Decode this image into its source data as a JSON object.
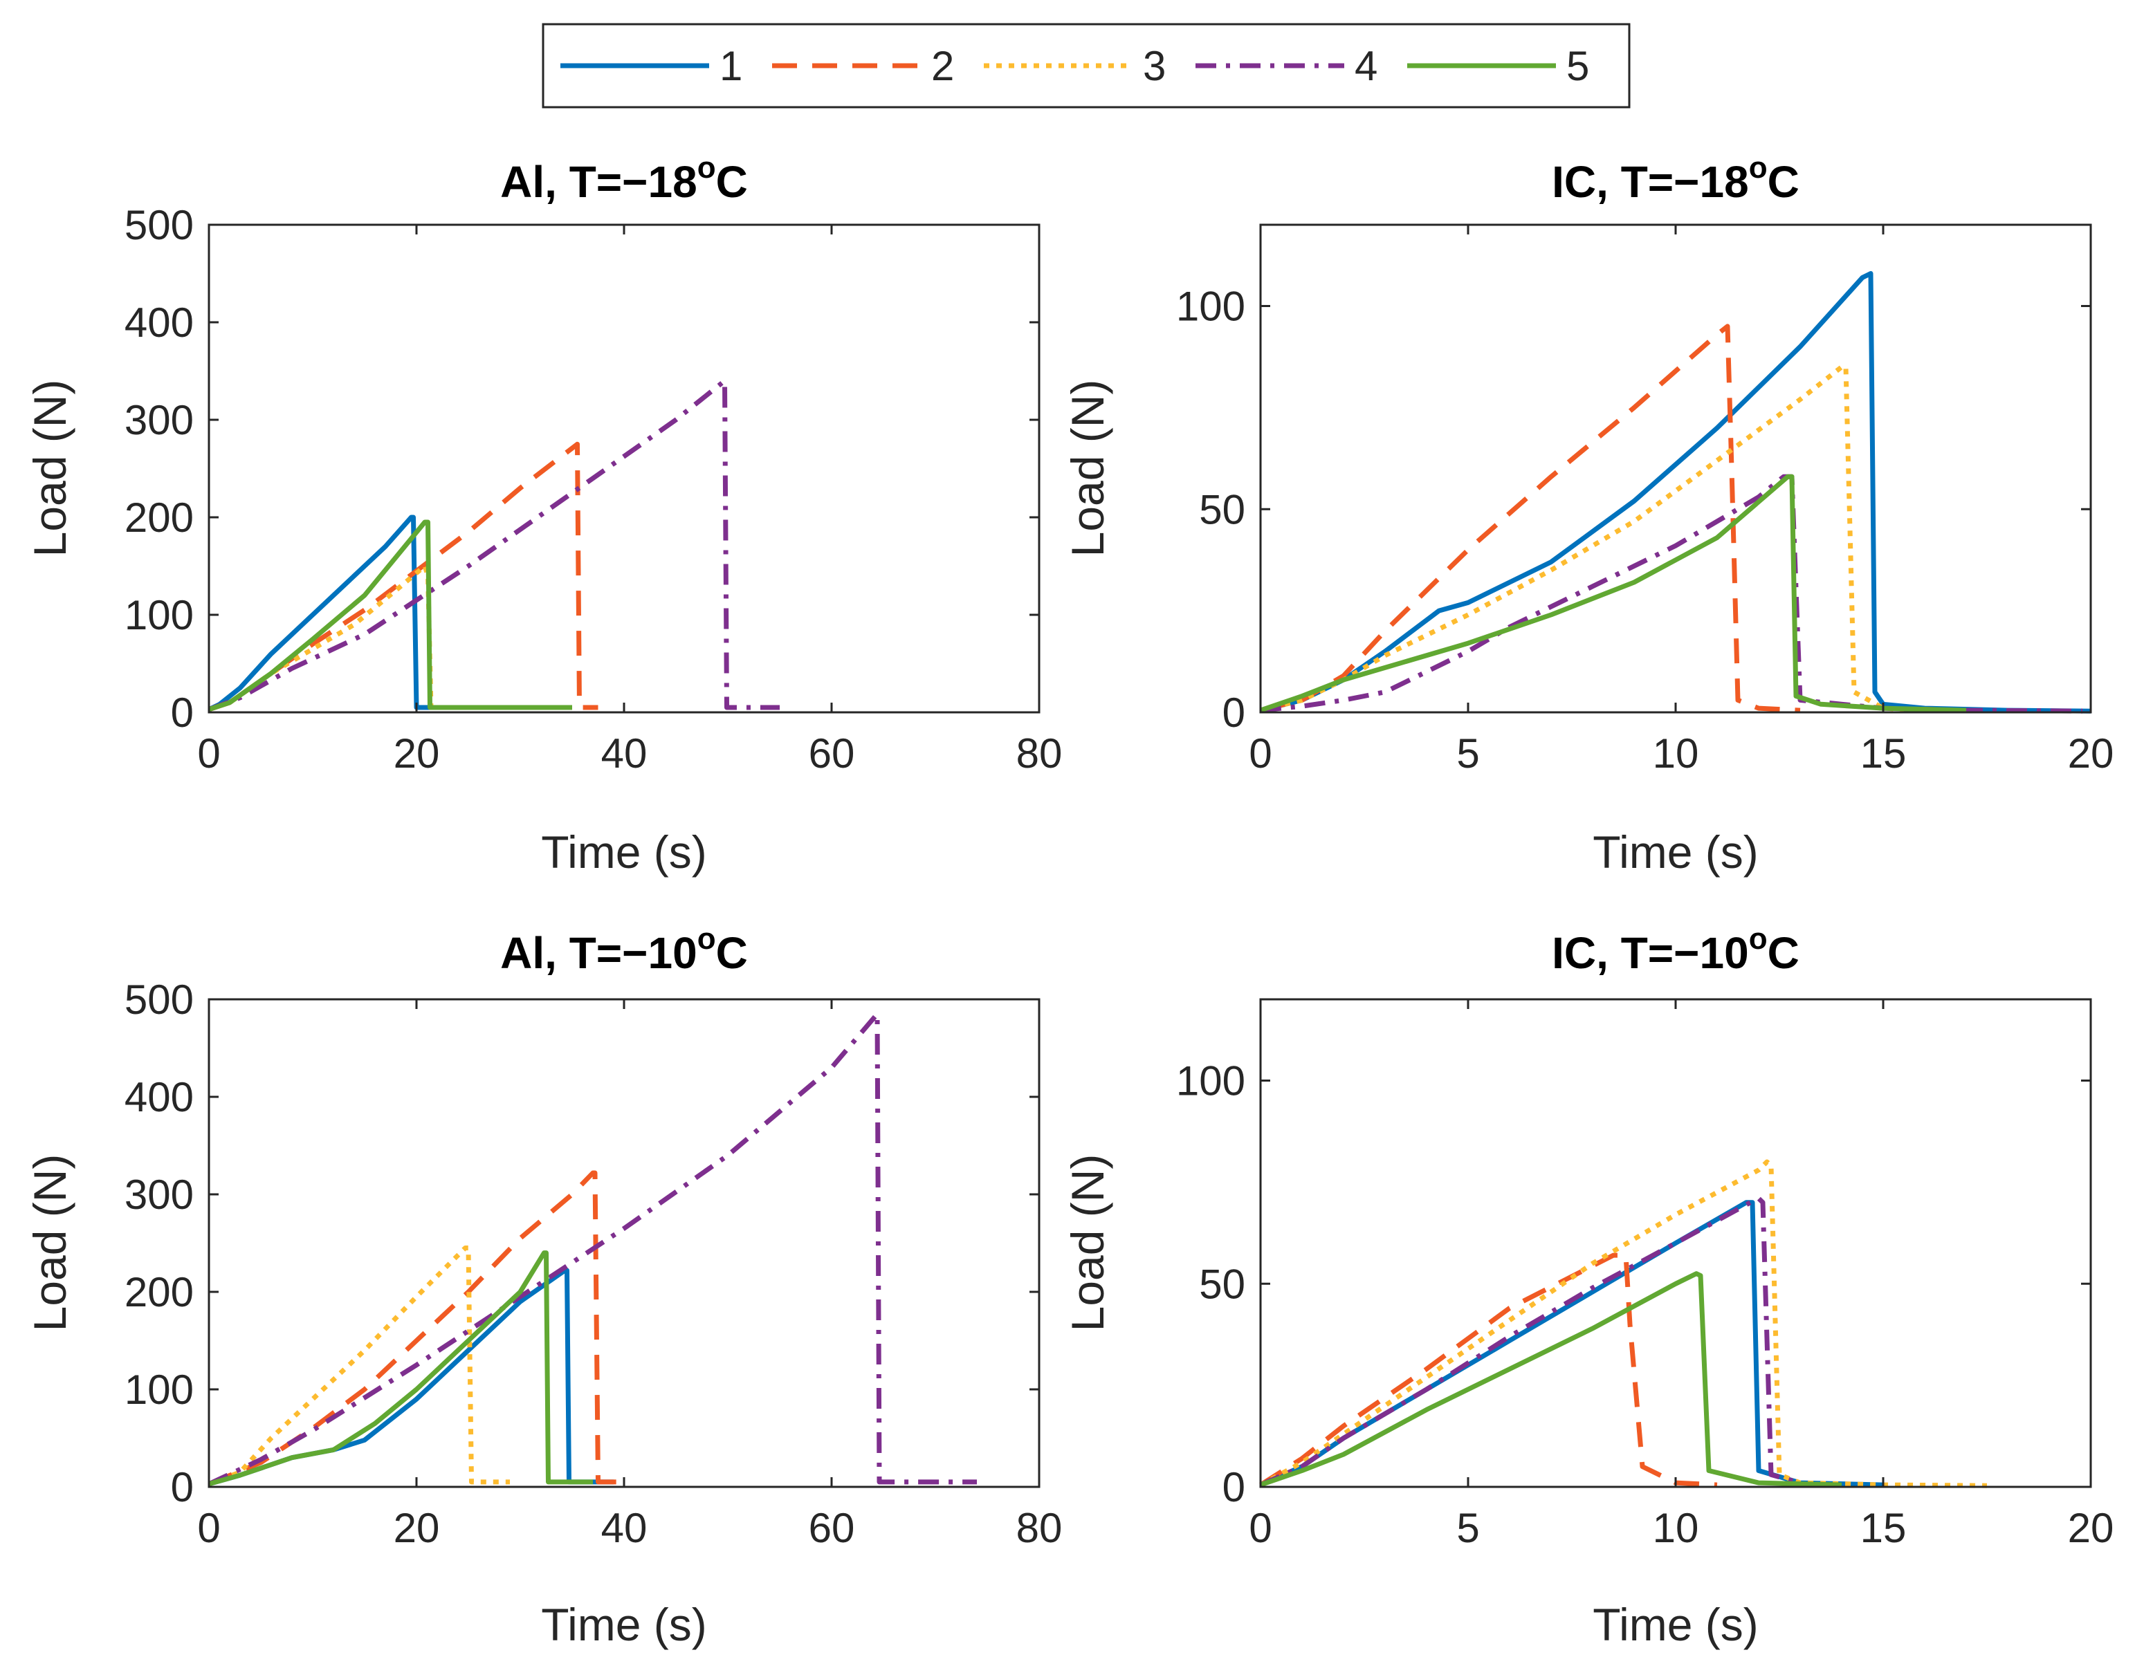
{
  "legend": {
    "entries": [
      {
        "label": "1",
        "color": "#0072BD",
        "dash": "solid",
        "width": 7
      },
      {
        "label": "2",
        "color": "#F05A23",
        "dash": "dashed",
        "width": 7
      },
      {
        "label": "3",
        "color": "#FDBB2F",
        "dash": "dotted",
        "width": 7
      },
      {
        "label": "4",
        "color": "#7E2F8E",
        "dash": "dashdot",
        "width": 7
      },
      {
        "label": "5",
        "color": "#61A832",
        "dash": "solid",
        "width": 7
      }
    ]
  },
  "chart_data": [
    {
      "type": "line",
      "title": "Al, T=−18",
      "title_super": "o",
      "title_suffix": "C",
      "xlabel": "Time (s)",
      "ylabel": "Load (N)",
      "xlim": [
        0,
        80
      ],
      "ylim": [
        0,
        500
      ],
      "xticks": [
        0,
        20,
        40,
        60,
        80
      ],
      "yticks": [
        0,
        100,
        200,
        300,
        400,
        500
      ],
      "series": [
        {
          "name": "1",
          "x": [
            0,
            1,
            3,
            6,
            10,
            14,
            17,
            19.5,
            19.7,
            20,
            25,
            30,
            35
          ],
          "y": [
            3,
            8,
            25,
            60,
            100,
            140,
            170,
            200,
            200,
            5,
            5,
            5,
            5
          ]
        },
        {
          "name": "2",
          "x": [
            0,
            2,
            6,
            10,
            15,
            20,
            25,
            30,
            35.5,
            35.7,
            37.5
          ],
          "y": [
            3,
            10,
            40,
            70,
            105,
            145,
            185,
            230,
            275,
            5,
            5
          ]
        },
        {
          "name": "3",
          "x": [
            0,
            2,
            6,
            10,
            14,
            18,
            20.8,
            21.1,
            21.4,
            25,
            30,
            35
          ],
          "y": [
            3,
            10,
            40,
            65,
            90,
            125,
            150,
            140,
            5,
            5,
            5,
            5
          ]
        },
        {
          "name": "4",
          "x": [
            0,
            3,
            8,
            15,
            25,
            35,
            45,
            49.7,
            49.9,
            52,
            55
          ],
          "y": [
            3,
            15,
            45,
            80,
            150,
            225,
            300,
            340,
            5,
            5,
            5
          ]
        },
        {
          "name": "5",
          "x": [
            0,
            2,
            6,
            10,
            15,
            20.8,
            21.1,
            21.3,
            25,
            30,
            35
          ],
          "y": [
            3,
            10,
            40,
            75,
            120,
            195,
            195,
            5,
            5,
            5,
            5
          ]
        }
      ]
    },
    {
      "type": "line",
      "title": "IC, T=−18",
      "title_super": "o",
      "title_suffix": "C",
      "xlabel": "Time (s)",
      "ylabel": "Load (N)",
      "xlim": [
        0,
        20
      ],
      "ylim": [
        0,
        120
      ],
      "xticks": [
        0,
        5,
        10,
        15,
        20
      ],
      "yticks": [
        0,
        50,
        100
      ],
      "series": [
        {
          "name": "1",
          "x": [
            0,
            1,
            2,
            3,
            4.3,
            5,
            7,
            9,
            11,
            13,
            14.5,
            14.7,
            14.8,
            15,
            16,
            18,
            20
          ],
          "y": [
            0.5,
            3,
            8,
            15,
            25,
            27,
            37,
            52,
            70,
            90,
            107,
            108,
            5,
            2,
            1,
            0.5,
            0.3
          ]
        },
        {
          "name": "2",
          "x": [
            0,
            1,
            2,
            3,
            5,
            7,
            9,
            11,
            11.25,
            11.35,
            11.5,
            12,
            13
          ],
          "y": [
            0.5,
            3,
            9,
            20,
            40,
            58,
            75,
            93,
            95,
            60,
            3,
            1,
            0.5
          ]
        },
        {
          "name": "3",
          "x": [
            0,
            1,
            2,
            3,
            5,
            7,
            9,
            11,
            13,
            14,
            14.1,
            14.3,
            15,
            16
          ],
          "y": [
            0.5,
            3,
            8,
            14,
            24,
            35,
            47,
            62,
            77,
            85,
            85,
            5,
            1,
            0.5
          ]
        },
        {
          "name": "4",
          "x": [
            0,
            1,
            2,
            3,
            4,
            5,
            6,
            8,
            10,
            12,
            12.6,
            12.8,
            13,
            15,
            17,
            19.8
          ],
          "y": [
            0.5,
            1.5,
            3,
            5,
            10,
            15,
            21,
            31,
            41,
            53,
            58,
            58,
            3,
            1,
            0.5,
            0.3
          ]
        },
        {
          "name": "5",
          "x": [
            0,
            1,
            2,
            3,
            5,
            7,
            9,
            11,
            12.7,
            12.8,
            12.9,
            13.5,
            15,
            17
          ],
          "y": [
            0.5,
            4,
            8,
            11,
            17,
            24,
            32,
            43,
            58,
            58,
            4,
            2,
            1,
            0.5
          ]
        }
      ]
    },
    {
      "type": "line",
      "title": "Al, T=−10",
      "title_super": "o",
      "title_suffix": "C",
      "xlabel": "Time (s)",
      "ylabel": "Load (N)",
      "xlim": [
        0,
        80
      ],
      "ylim": [
        0,
        500
      ],
      "xticks": [
        0,
        20,
        40,
        60,
        80
      ],
      "yticks": [
        0,
        100,
        200,
        300,
        400,
        500
      ],
      "series": [
        {
          "name": "1",
          "x": [
            0,
            3,
            8,
            12,
            15,
            20,
            25,
            30,
            34.3,
            34.5,
            34.7,
            37,
            39
          ],
          "y": [
            3,
            12,
            30,
            38,
            48,
            90,
            140,
            190,
            222,
            222,
            5,
            5,
            5
          ]
        },
        {
          "name": "2",
          "x": [
            0,
            5,
            10,
            15,
            20,
            25,
            30,
            35,
            37,
            37.2,
            37.5,
            40
          ],
          "y": [
            3,
            25,
            60,
            100,
            150,
            200,
            255,
            300,
            322,
            322,
            5,
            5
          ]
        },
        {
          "name": "3",
          "x": [
            0,
            3,
            6,
            10,
            15,
            20,
            24.7,
            25,
            25.3,
            27,
            29
          ],
          "y": [
            3,
            15,
            50,
            90,
            140,
            195,
            245,
            245,
            5,
            5,
            5
          ]
        },
        {
          "name": "4",
          "x": [
            0,
            5,
            10,
            20,
            30,
            40,
            50,
            60,
            64.4,
            64.6,
            67,
            70,
            74
          ],
          "y": [
            3,
            28,
            58,
            125,
            195,
            265,
            340,
            430,
            485,
            5,
            5,
            5,
            5
          ]
        },
        {
          "name": "5",
          "x": [
            0,
            3,
            8,
            12,
            16,
            20,
            25,
            30,
            32.3,
            32.5,
            32.7,
            35,
            37
          ],
          "y": [
            3,
            12,
            30,
            38,
            65,
            100,
            150,
            200,
            240,
            240,
            5,
            5,
            5
          ]
        }
      ]
    },
    {
      "type": "line",
      "title": "IC, T=−10",
      "title_super": "o",
      "title_suffix": "C",
      "xlabel": "Time (s)",
      "ylabel": "Load (N)",
      "xlim": [
        0,
        20
      ],
      "ylim": [
        0,
        120
      ],
      "xticks": [
        0,
        5,
        10,
        15,
        20
      ],
      "yticks": [
        0,
        50,
        100
      ],
      "series": [
        {
          "name": "1",
          "x": [
            0,
            1,
            2,
            4,
            6,
            8,
            10,
            11.7,
            11.85,
            12,
            13,
            15
          ],
          "y": [
            0.5,
            5,
            12,
            24,
            36,
            48,
            60,
            70,
            70,
            4,
            1,
            0.5
          ]
        },
        {
          "name": "2",
          "x": [
            0,
            1,
            2,
            4,
            6,
            8.5,
            8.8,
            8.9,
            9.2,
            10,
            11
          ],
          "y": [
            0.5,
            7,
            15,
            29,
            44,
            57,
            57,
            40,
            5,
            1,
            0.5
          ]
        },
        {
          "name": "3",
          "x": [
            0,
            1,
            2,
            4,
            6,
            8,
            10,
            12,
            12.2,
            12.3,
            12.5,
            13,
            15,
            17.5
          ],
          "y": [
            0.5,
            6,
            13,
            27,
            41,
            55,
            67,
            78,
            80,
            79,
            3,
            1,
            0.5,
            0.3
          ]
        },
        {
          "name": "4",
          "x": [
            0,
            1,
            2,
            4,
            6,
            8,
            10,
            11.8,
            12,
            12.1,
            12.3,
            13
          ],
          "y": [
            0.5,
            5,
            12,
            24,
            37,
            49,
            60,
            70,
            71,
            70,
            3,
            1
          ]
        },
        {
          "name": "5",
          "x": [
            0,
            1,
            2,
            4,
            6,
            8,
            10,
            10.5,
            10.6,
            10.8,
            12,
            14
          ],
          "y": [
            0.5,
            4,
            8,
            19,
            29,
            39,
            50,
            52.5,
            52,
            4,
            1,
            0.5
          ]
        }
      ]
    }
  ]
}
